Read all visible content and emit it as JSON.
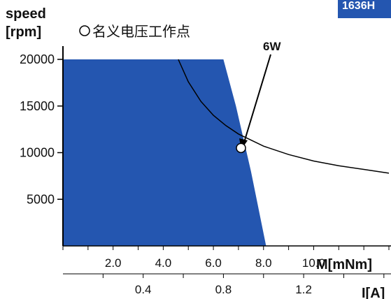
{
  "chart_data": {
    "type": "area",
    "model_badge": "1636H",
    "y_title_line1": "speed",
    "y_title_line2": "[rpm]",
    "legend_text": "名义电压工作点",
    "curve_label": "6W",
    "x_axis_torque": {
      "label": "M[mNm]",
      "range": [
        0,
        13.0
      ],
      "ticks": [
        2.0,
        4.0,
        6.0,
        8.0,
        10.0
      ]
    },
    "x_axis_current": {
      "label": "I[A]",
      "range": [
        0,
        1.625
      ],
      "ticks": [
        0.4,
        0.8,
        1.2
      ]
    },
    "y_axis": {
      "range": [
        0,
        20000
      ],
      "ticks": [
        5000,
        10000,
        15000,
        20000
      ]
    },
    "operating_region": {
      "color": "#2456b0",
      "boundary_torque_mNm": [
        0,
        0,
        6.4,
        6.9,
        7.5,
        8.1
      ],
      "boundary_speed_rpm": [
        0,
        20000,
        20000,
        15000,
        8000,
        0
      ]
    },
    "power_curve": {
      "name": "6W",
      "torque_mNm": [
        4.6,
        5.0,
        5.5,
        6.0,
        6.5,
        7.0,
        8.0,
        9.0,
        10.0,
        11.0,
        12.0,
        13.0
      ],
      "speed_rpm": [
        20000,
        17600,
        15500,
        14000,
        12900,
        12000,
        10700,
        9800,
        9100,
        8600,
        8200,
        7800
      ]
    },
    "operating_point": {
      "torque_mNm": 7.1,
      "speed_rpm": 10500
    }
  }
}
